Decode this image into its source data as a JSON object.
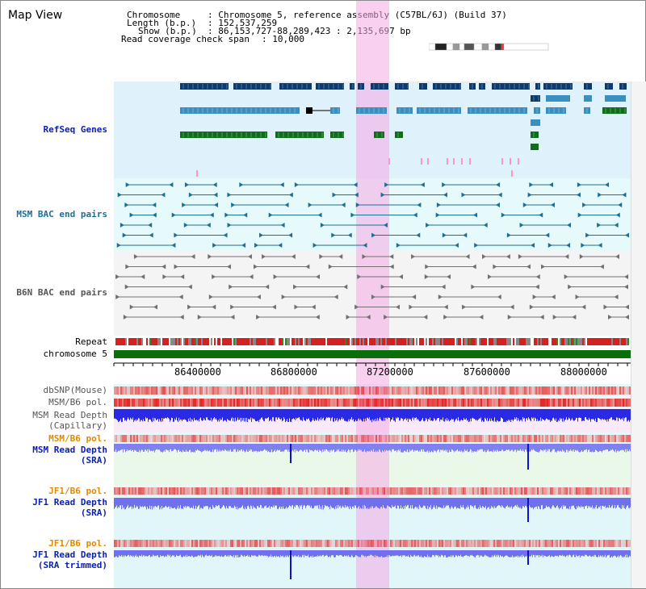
{
  "page": {
    "title": "Map View"
  },
  "header": {
    "chromosome_label": "Chromosome",
    "chromosome_value": "Chromosome 5, reference assembly (C57BL/6J) (Build 37)",
    "length_label": "Length (b.p.)",
    "length_value": "152,537,259",
    "show_label": "Show (b.p.)",
    "show_value": "86,153,727-88,289,423 : 2,135,697 bp",
    "coverage_label": "Read coverage check span",
    "coverage_value": "10,000"
  },
  "tracks": {
    "refseq": "RefSeq Genes",
    "msm_bac": "MSM BAC end pairs",
    "b6n_bac": "B6N BAC end pairs",
    "repeat": "Repeat",
    "chromosome": "chromosome 5",
    "dbsnp": "dbSNP(Mouse)",
    "msm_b6_pol_1": "MSM/B6 pol.",
    "msm_depth_cap_1": "MSM Read Depth",
    "msm_depth_cap_2": "(Capillary)",
    "msm_b6_pol_2": "MSM/B6 pol.",
    "msm_depth_sra_1": "MSM Read Depth",
    "msm_depth_sra_2": "(SRA)",
    "jf1_b6_pol_1": "JF1/B6 pol.",
    "jf1_depth_sra_1": "JF1 Read Depth",
    "jf1_depth_sra_2": "(SRA)",
    "jf1_b6_pol_2": "JF1/B6 pol.",
    "jf1_depth_trim_1": "JF1 Read Depth",
    "jf1_depth_trim_2": "(SRA trimmed)"
  },
  "axis": {
    "ticks": [
      "86400000",
      "86800000",
      "87200000",
      "87600000",
      "88000000"
    ]
  },
  "colors": {
    "refseq_bg": "#dff1fa",
    "msm_bg": "#e6f9fb",
    "b6n_bg": "#f4f4f4",
    "gene_dark": "#0d3a6e",
    "gene_mid": "#3b8ec0",
    "gene_green": "#0f6e1a",
    "msm_pair": "#1d6f93",
    "b6n_pair": "#707070",
    "label_blue": "#0b1fae",
    "label_orange": "#e08a00",
    "highlight": "#f5aae6"
  }
}
